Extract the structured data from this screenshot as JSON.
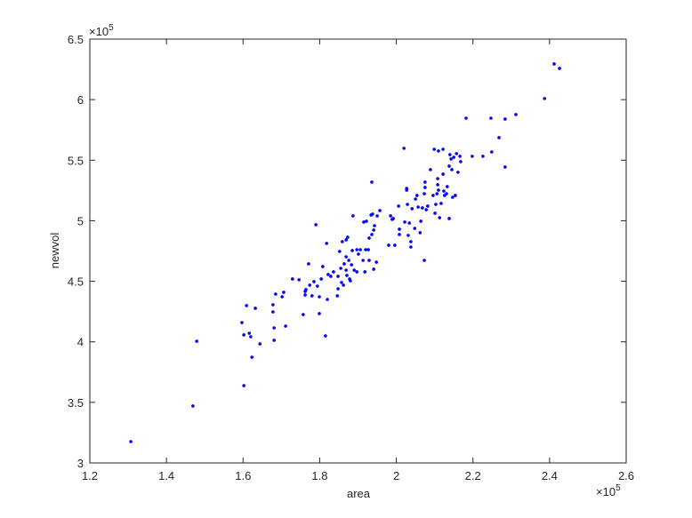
{
  "chart_data": {
    "type": "scatter",
    "xlabel": "area",
    "ylabel": "newvol",
    "x_exponent": {
      "base": "×10",
      "power": "5"
    },
    "y_exponent": {
      "base": "×10",
      "power": "5"
    },
    "xlim": [
      1.2,
      2.6
    ],
    "xticks": [
      1.2,
      1.4,
      1.6,
      1.8,
      2,
      2.2,
      2.4,
      2.6
    ],
    "ylim": [
      3,
      6.5
    ],
    "yticks": [
      3,
      3.5,
      4,
      4.5,
      5,
      5.5,
      6,
      6.5
    ],
    "grid": false,
    "series": [
      {
        "color": "#0000ff",
        "x": [
          1.307,
          1.469,
          1.479,
          1.602,
          1.597,
          1.602,
          1.609,
          1.616,
          1.62,
          1.623,
          1.632,
          1.644,
          1.678,
          1.678,
          1.681,
          1.681,
          1.685,
          1.702,
          1.706,
          1.711,
          1.729,
          1.746,
          1.757,
          1.762,
          1.762,
          1.764,
          1.771,
          1.774,
          1.78,
          1.785,
          1.79,
          1.794,
          1.799,
          1.799,
          1.804,
          1.808,
          1.815,
          1.818,
          1.82,
          1.822,
          1.829,
          1.836,
          1.846,
          1.848,
          1.848,
          1.852,
          1.855,
          1.857,
          1.859,
          1.862,
          1.864,
          1.869,
          1.869,
          1.869,
          1.871,
          1.873,
          1.876,
          1.878,
          1.88,
          1.883,
          1.885,
          1.887,
          1.89,
          1.897,
          1.897,
          1.901,
          1.906,
          1.913,
          1.915,
          1.918,
          1.92,
          1.922,
          1.927,
          1.929,
          1.929,
          1.934,
          1.936,
          1.936,
          1.938,
          1.941,
          1.941,
          1.943,
          1.948,
          1.95,
          1.957,
          1.98,
          1.985,
          1.989,
          1.992,
          1.996,
          2.006,
          2.008,
          2.008,
          2.02,
          2.022,
          2.027,
          2.027,
          2.029,
          2.031,
          2.034,
          2.038,
          2.038,
          2.041,
          2.048,
          2.05,
          2.054,
          2.057,
          2.062,
          2.064,
          2.068,
          2.073,
          2.073,
          2.075,
          2.075,
          2.078,
          2.082,
          2.089,
          2.096,
          2.099,
          2.101,
          2.103,
          2.106,
          2.108,
          2.108,
          2.11,
          2.11,
          2.113,
          2.117,
          2.122,
          2.122,
          2.124,
          2.126,
          2.131,
          2.133,
          2.138,
          2.138,
          2.14,
          2.143,
          2.145,
          2.147,
          2.15,
          2.154,
          2.157,
          2.161,
          2.166,
          2.168,
          2.182,
          2.198,
          2.226,
          2.247,
          2.249,
          2.268,
          2.284,
          2.284,
          2.312,
          2.387,
          2.412,
          2.426
        ],
        "values": [
          3.176,
          3.47,
          4.005,
          3.638,
          4.159,
          4.057,
          4.299,
          4.071,
          4.042,
          3.873,
          4.277,
          3.983,
          4.247,
          4.306,
          4.115,
          4.013,
          4.394,
          4.372,
          4.409,
          4.13,
          4.519,
          4.512,
          4.225,
          4.416,
          4.387,
          4.431,
          4.644,
          4.468,
          4.38,
          4.497,
          4.967,
          4.46,
          4.372,
          4.233,
          4.519,
          4.622,
          4.049,
          4.813,
          4.35,
          4.556,
          4.541,
          4.578,
          4.38,
          4.438,
          4.541,
          4.746,
          4.607,
          4.49,
          4.827,
          4.468,
          4.644,
          4.842,
          4.592,
          4.702,
          4.548,
          4.864,
          4.673,
          4.519,
          4.504,
          4.636,
          4.754,
          5.04,
          4.592,
          4.761,
          4.578,
          4.724,
          4.761,
          4.673,
          4.989,
          4.578,
          4.761,
          4.996,
          4.761,
          4.857,
          4.673,
          5.047,
          5.319,
          4.886,
          5.055,
          4.923,
          4.6,
          4.959,
          4.658,
          5.04,
          5.084,
          4.798,
          5.04,
          5.011,
          5.018,
          4.798,
          5.121,
          4.886,
          4.93,
          5.598,
          4.989,
          5.267,
          5.253,
          5.135,
          4.879,
          4.981,
          4.827,
          4.783,
          5.099,
          4.937,
          5.179,
          5.209,
          5.113,
          4.901,
          4.996,
          5.106,
          4.673,
          5.223,
          5.319,
          5.275,
          5.091,
          5.121,
          5.422,
          5.209,
          5.59,
          5.062,
          5.135,
          5.223,
          5.348,
          5.297,
          5.253,
          5.576,
          5.025,
          5.143,
          5.59,
          5.385,
          5.245,
          5.209,
          5.223,
          5.282,
          5.018,
          5.451,
          5.546,
          5.51,
          5.422,
          5.194,
          5.524,
          5.209,
          5.554,
          5.4,
          5.532,
          5.488,
          5.847,
          5.532,
          5.532,
          5.847,
          5.568,
          5.686,
          5.84,
          5.444,
          5.877,
          6.009,
          6.295,
          6.258
        ]
      }
    ]
  }
}
